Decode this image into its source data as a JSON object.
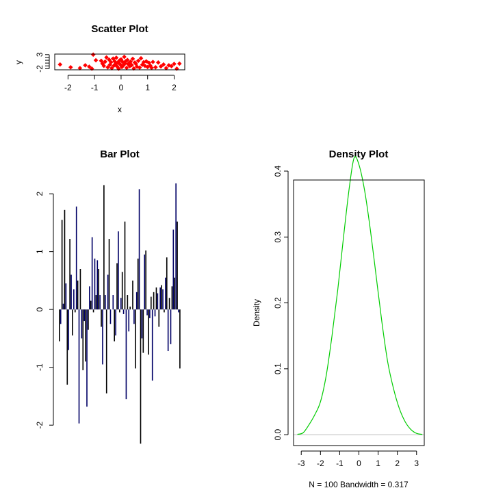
{
  "chart_data": [
    {
      "type": "scatter",
      "title": "Scatter Plot",
      "xlabel": "x",
      "ylabel": "y",
      "xlim": [
        -2.5,
        2.4
      ],
      "ylim": [
        -2.4,
        3.2
      ],
      "x_ticks": [
        "-2",
        "-1",
        "0",
        "1",
        "2"
      ],
      "y_ticks": [
        "-2",
        "3"
      ],
      "point_color": "#ff0000",
      "points": [
        [
          -2.3,
          -0.5
        ],
        [
          -1.9,
          -1.5
        ],
        [
          -1.55,
          -1.8
        ],
        [
          -1.35,
          -0.8
        ],
        [
          -1.2,
          -1.3
        ],
        [
          -1.1,
          -2.0
        ],
        [
          -1.05,
          3.0
        ],
        [
          -0.95,
          1.0
        ],
        [
          -0.75,
          0.8
        ],
        [
          -0.7,
          -0.2
        ],
        [
          -0.65,
          -1.0
        ],
        [
          -0.6,
          0.5
        ],
        [
          -0.55,
          2.0
        ],
        [
          -0.5,
          -1.5
        ],
        [
          -0.45,
          1.2
        ],
        [
          -0.42,
          -0.6
        ],
        [
          -0.38,
          0.3
        ],
        [
          -0.35,
          -1.8
        ],
        [
          -0.3,
          1.6
        ],
        [
          -0.27,
          -0.9
        ],
        [
          -0.24,
          0.6
        ],
        [
          -0.21,
          -0.3
        ],
        [
          -0.18,
          1.9
        ],
        [
          -0.15,
          -1.2
        ],
        [
          -0.12,
          0.2
        ],
        [
          -0.09,
          -2.0
        ],
        [
          -0.06,
          0.9
        ],
        [
          -0.03,
          -0.5
        ],
        [
          0.0,
          1.3
        ],
        [
          0.03,
          -1.4
        ],
        [
          0.06,
          0.4
        ],
        [
          0.09,
          -0.8
        ],
        [
          0.12,
          2.2
        ],
        [
          0.15,
          -0.1
        ],
        [
          0.18,
          0.7
        ],
        [
          0.21,
          -1.7
        ],
        [
          0.24,
          1.1
        ],
        [
          0.27,
          -0.4
        ],
        [
          0.3,
          0.0
        ],
        [
          0.33,
          -1.1
        ],
        [
          0.36,
          0.5
        ],
        [
          0.4,
          -0.7
        ],
        [
          0.44,
          1.5
        ],
        [
          0.48,
          -1.9
        ],
        [
          0.52,
          0.2
        ],
        [
          0.56,
          -0.3
        ],
        [
          0.6,
          -1.3
        ],
        [
          0.65,
          0.8
        ],
        [
          0.7,
          -1.6
        ],
        [
          0.75,
          1.7
        ],
        [
          0.8,
          -0.6
        ],
        [
          0.85,
          0.3
        ],
        [
          0.9,
          -1.0
        ],
        [
          0.95,
          0.6
        ],
        [
          1.0,
          -1.4
        ],
        [
          1.05,
          0.1
        ],
        [
          1.1,
          -0.9
        ],
        [
          1.15,
          -1.7
        ],
        [
          1.2,
          0.4
        ],
        [
          1.3,
          -1.5
        ],
        [
          1.4,
          0.2
        ],
        [
          1.5,
          -1.2
        ],
        [
          1.6,
          -0.5
        ],
        [
          1.7,
          -1.8
        ],
        [
          1.8,
          -0.8
        ],
        [
          1.9,
          -1.1
        ],
        [
          2.0,
          -0.3
        ],
        [
          2.1,
          -2.0
        ],
        [
          2.2,
          -0.2
        ]
      ]
    },
    {
      "type": "bar",
      "title": "Bar Plot",
      "ylim": [
        -2.4,
        2.25
      ],
      "y_ticks": [
        "-2",
        "-1",
        "0",
        "1",
        "2"
      ],
      "colors": [
        "#000000",
        "#000066"
      ],
      "values": [
        -0.55,
        -0.25,
        1.55,
        0.1,
        1.72,
        0.45,
        -1.3,
        -0.7,
        1.22,
        0.6,
        -0.45,
        0.35,
        -0.05,
        1.78,
        0.5,
        -1.97,
        0.7,
        -0.5,
        -1.05,
        -0.2,
        -0.9,
        -1.68,
        -0.35,
        0.4,
        0.15,
        1.25,
        -0.05,
        0.88,
        0.25,
        0.85,
        0.7,
        0.25,
        -0.3,
        -0.95,
        2.15,
        0.25,
        -1.45,
        0.6,
        1.22,
        -0.25,
        0.0,
        0.25,
        -0.55,
        -0.45,
        0.8,
        1.35,
        -0.05,
        0.2,
        0.65,
        -0.08,
        1.52,
        -1.55,
        0.25,
        -0.38,
        0.05,
        0.0,
        0.5,
        -0.25,
        -1.02,
        0.3,
        0.88,
        2.08,
        -2.32,
        -0.5,
        -0.75,
        0.95,
        1.02,
        -0.1,
        -0.78,
        -0.15,
        0.22,
        -1.23,
        0.3,
        -0.12,
        0.38,
        0.28,
        -0.3,
        0.38,
        0.42,
        0.35,
        -0.05,
        0.55,
        0.9,
        -0.72,
        0.2,
        -0.6,
        0.4,
        1.38,
        0.55,
        2.18,
        1.52,
        -0.05,
        -1.02
      ]
    },
    {
      "type": "line",
      "title": "Density Plot",
      "ylabel": "Density",
      "xlabel": "N = 100   Bandwidth = 0.317",
      "xlim": [
        -3.4,
        3.4
      ],
      "ylim": [
        -0.0165,
        0.3865
      ],
      "x_ticks": [
        "-3",
        "-2",
        "-1",
        "0",
        "1",
        "2",
        "3"
      ],
      "y_ticks": [
        "0.0",
        "0.1",
        "0.2",
        "0.3",
        "0.4"
      ],
      "line_color": "#00cc00",
      "baseline_color": "#bebebe",
      "x": [
        -3.2,
        -2.9,
        -2.6,
        -2.3,
        -2.0,
        -1.7,
        -1.4,
        -1.1,
        -0.8,
        -0.5,
        -0.25,
        0.0,
        0.3,
        0.6,
        0.9,
        1.2,
        1.5,
        1.8,
        2.1,
        2.4,
        2.7,
        3.0,
        3.3
      ],
      "y": [
        0.0005,
        0.003,
        0.015,
        0.03,
        0.05,
        0.09,
        0.15,
        0.22,
        0.3,
        0.375,
        0.42,
        0.41,
        0.37,
        0.31,
        0.24,
        0.17,
        0.11,
        0.07,
        0.04,
        0.02,
        0.008,
        0.002,
        0.0005
      ]
    }
  ]
}
